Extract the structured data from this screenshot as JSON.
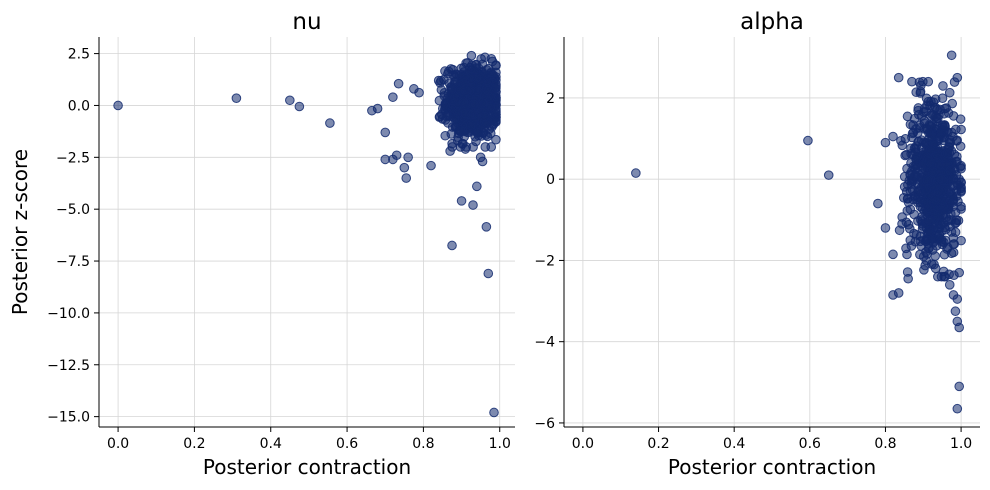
{
  "chart_data": [
    {
      "type": "scatter",
      "title": "nu",
      "xlabel": "Posterior contraction",
      "ylabel": "Posterior z-score",
      "xlim": [
        -0.05,
        1.04
      ],
      "ylim": [
        -15.5,
        3.3
      ],
      "xticks": [
        "0.0",
        "0.2",
        "0.4",
        "0.6",
        "0.8",
        "1.0"
      ],
      "yticks": [
        "2.5",
        "0.0",
        "−2.5",
        "−5.0",
        "−7.5",
        "−10.0",
        "−12.5",
        "−15.0"
      ],
      "grid": true,
      "color": "#132a6e",
      "outliers": [
        [
          0.0,
          0.0
        ],
        [
          0.31,
          0.35
        ],
        [
          0.45,
          0.25
        ],
        [
          0.475,
          -0.05
        ],
        [
          0.555,
          -0.85
        ],
        [
          0.665,
          -0.25
        ],
        [
          0.68,
          -0.15
        ],
        [
          0.7,
          -1.3
        ],
        [
          0.7,
          -2.6
        ],
        [
          0.72,
          -2.6
        ],
        [
          0.73,
          -2.4
        ],
        [
          0.735,
          1.05
        ],
        [
          0.75,
          -3.0
        ],
        [
          0.755,
          -3.5
        ],
        [
          0.76,
          -2.5
        ],
        [
          0.82,
          -2.9
        ],
        [
          0.87,
          -2.2
        ],
        [
          0.89,
          -1.7
        ],
        [
          0.9,
          -4.6
        ],
        [
          0.91,
          -2.1
        ],
        [
          0.93,
          -4.8
        ],
        [
          0.94,
          -3.9
        ],
        [
          0.95,
          -2.5
        ],
        [
          0.955,
          -2.7
        ],
        [
          0.965,
          -5.85
        ],
        [
          0.97,
          -8.1
        ],
        [
          0.875,
          -6.75
        ],
        [
          0.985,
          -14.8
        ],
        [
          0.72,
          0.4
        ],
        [
          0.775,
          0.8
        ]
      ],
      "cluster": {
        "x_range": [
          0.78,
          0.99
        ],
        "y_range": [
          -2.0,
          2.4
        ],
        "n": 700
      }
    },
    {
      "type": "scatter",
      "title": "alpha",
      "xlabel": "Posterior contraction",
      "ylabel": "",
      "xlim": [
        -0.05,
        1.05
      ],
      "ylim": [
        -6.1,
        3.5
      ],
      "xticks": [
        "0.0",
        "0.2",
        "0.4",
        "0.6",
        "0.8",
        "1.0"
      ],
      "yticks": [
        "2",
        "0",
        "−2",
        "−4",
        "−6"
      ],
      "grid": true,
      "color": "#132a6e",
      "outliers": [
        [
          0.14,
          0.15
        ],
        [
          0.595,
          0.95
        ],
        [
          0.65,
          0.1
        ],
        [
          0.78,
          -0.6
        ],
        [
          0.8,
          -1.2
        ],
        [
          0.82,
          -1.85
        ],
        [
          0.82,
          -2.85
        ],
        [
          0.835,
          -2.8
        ],
        [
          0.86,
          -2.45
        ],
        [
          0.835,
          2.5
        ],
        [
          0.87,
          2.4
        ],
        [
          0.975,
          3.05
        ],
        [
          0.99,
          2.5
        ],
        [
          0.985,
          -3.25
        ],
        [
          0.99,
          -3.5
        ],
        [
          0.995,
          -3.65
        ],
        [
          0.995,
          -5.1
        ],
        [
          0.99,
          -5.65
        ],
        [
          0.99,
          -2.95
        ],
        [
          0.98,
          -2.85
        ],
        [
          0.97,
          -2.6
        ],
        [
          0.995,
          -2.3
        ],
        [
          0.82,
          1.05
        ],
        [
          0.8,
          0.9
        ]
      ],
      "cluster": {
        "x_range": [
          0.8,
          1.0
        ],
        "y_range": [
          -2.4,
          2.4
        ],
        "n": 700
      }
    }
  ]
}
